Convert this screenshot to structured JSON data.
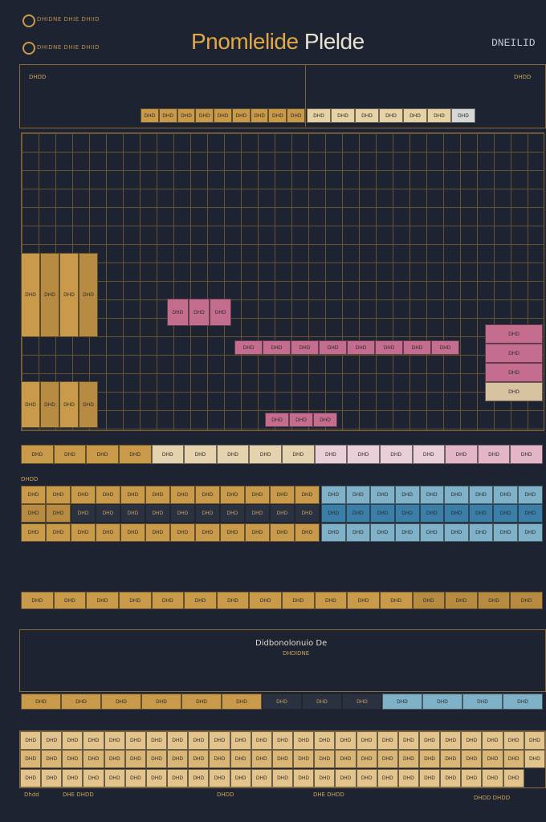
{
  "header": {
    "title_main": "Pnomlelide",
    "title_accent": "Plelde",
    "right_tag": "DNEILID",
    "small_top_1": "DHIDNE DHIE DHIID",
    "small_top_2": "DHIDNE DHIE DHIID"
  },
  "section_labels": {
    "a": "DHDD",
    "b": "DHDD",
    "c": "DHDD",
    "center": "Didbonolonuio De",
    "center_sub": "DHDIDNE",
    "bottom_1": "Dhdd",
    "bottom_2": "DHE DHDD",
    "bottom_3": "DHDD",
    "bottom_4": "DHE DHDD",
    "bottom_5": "DHDD DHDD"
  },
  "cell_text": "DHD",
  "colors": {
    "gold": "#c89a4a",
    "pink": "#c46d8f",
    "blue": "#3b7ea8",
    "light_blue": "#7fb2c8",
    "background": "#1d2330"
  }
}
